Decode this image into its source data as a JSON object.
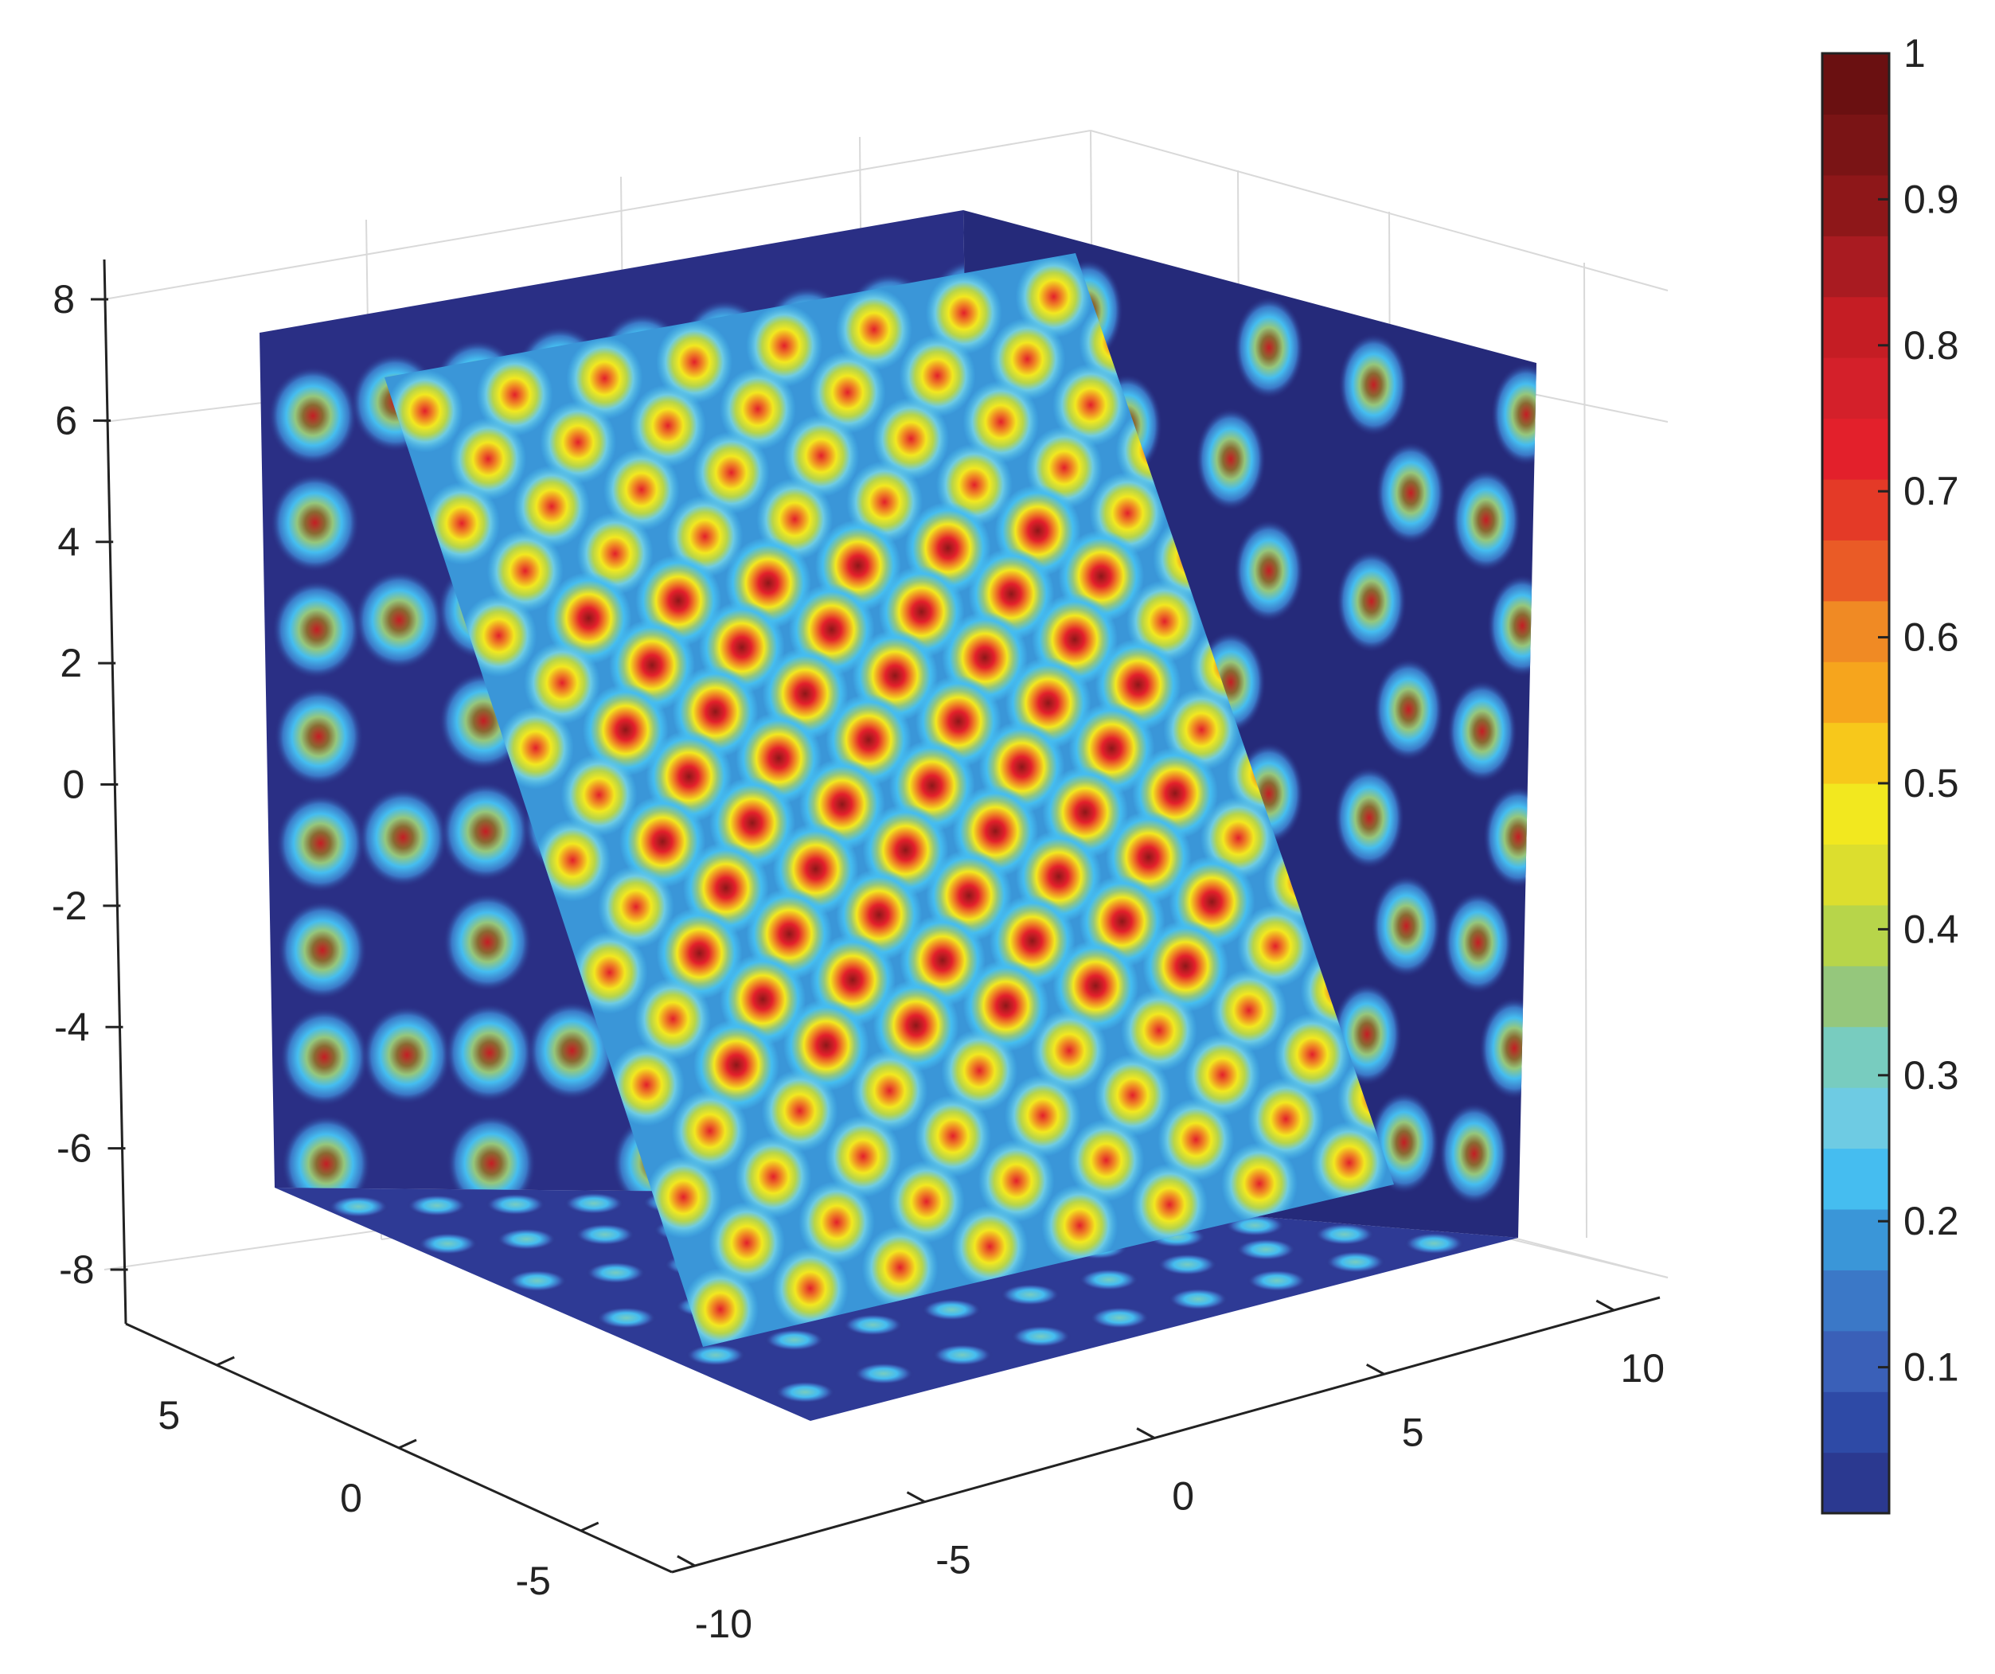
{
  "chart_data": {
    "type": "heatmap",
    "title": "",
    "xlabel": "",
    "ylabel": "",
    "zlabel": "",
    "grid": true,
    "axes": {
      "z_ticks": [
        {
          "value": 8,
          "label": "8"
        },
        {
          "value": 6,
          "label": "6"
        },
        {
          "value": 4,
          "label": "4"
        },
        {
          "value": 2,
          "label": "2"
        },
        {
          "value": 0,
          "label": "0"
        },
        {
          "value": -2,
          "label": "-2"
        },
        {
          "value": -4,
          "label": "-4"
        },
        {
          "value": -6,
          "label": "-6"
        },
        {
          "value": -8,
          "label": "-8"
        }
      ],
      "y_ticks": [
        {
          "value": 5,
          "label": "5"
        },
        {
          "value": 0,
          "label": "0"
        },
        {
          "value": -5,
          "label": "-5"
        }
      ],
      "x_ticks": [
        {
          "value": -10,
          "label": "-10"
        },
        {
          "value": -5,
          "label": "-5"
        },
        {
          "value": 0,
          "label": "0"
        },
        {
          "value": 5,
          "label": "5"
        },
        {
          "value": 10,
          "label": "10"
        }
      ]
    },
    "colorbar": {
      "range": [
        0,
        1
      ],
      "levels": 24,
      "colormap": [
        "#2b3990",
        "#2e4aa6",
        "#3a60b8",
        "#3b78c7",
        "#3a96d8",
        "#45bdf0",
        "#6ecbe3",
        "#78ccbf",
        "#95c77c",
        "#b7d54a",
        "#dcde2e",
        "#f2e81f",
        "#f7c81b",
        "#f6a51d",
        "#f08a24",
        "#ea5b26",
        "#e43a27",
        "#e3202b",
        "#d4202a",
        "#c51d24",
        "#a91b21",
        "#8e1719",
        "#7a1415",
        "#6a1011"
      ],
      "ticks": [
        {
          "value": 1,
          "label": "1"
        },
        {
          "value": 0.9,
          "label": "0.9"
        },
        {
          "value": 0.8,
          "label": "0.8"
        },
        {
          "value": 0.7,
          "label": "0.7"
        },
        {
          "value": 0.6,
          "label": "0.6"
        },
        {
          "value": 0.5,
          "label": "0.5"
        },
        {
          "value": 0.4,
          "label": "0.4"
        },
        {
          "value": 0.3,
          "label": "0.3"
        },
        {
          "value": 0.2,
          "label": "0.2"
        },
        {
          "value": 0.1,
          "label": "0.1"
        }
      ]
    }
  },
  "colors": {
    "background": "#2a2f85",
    "grid": "#d9d9d9",
    "axis": "#222222"
  }
}
